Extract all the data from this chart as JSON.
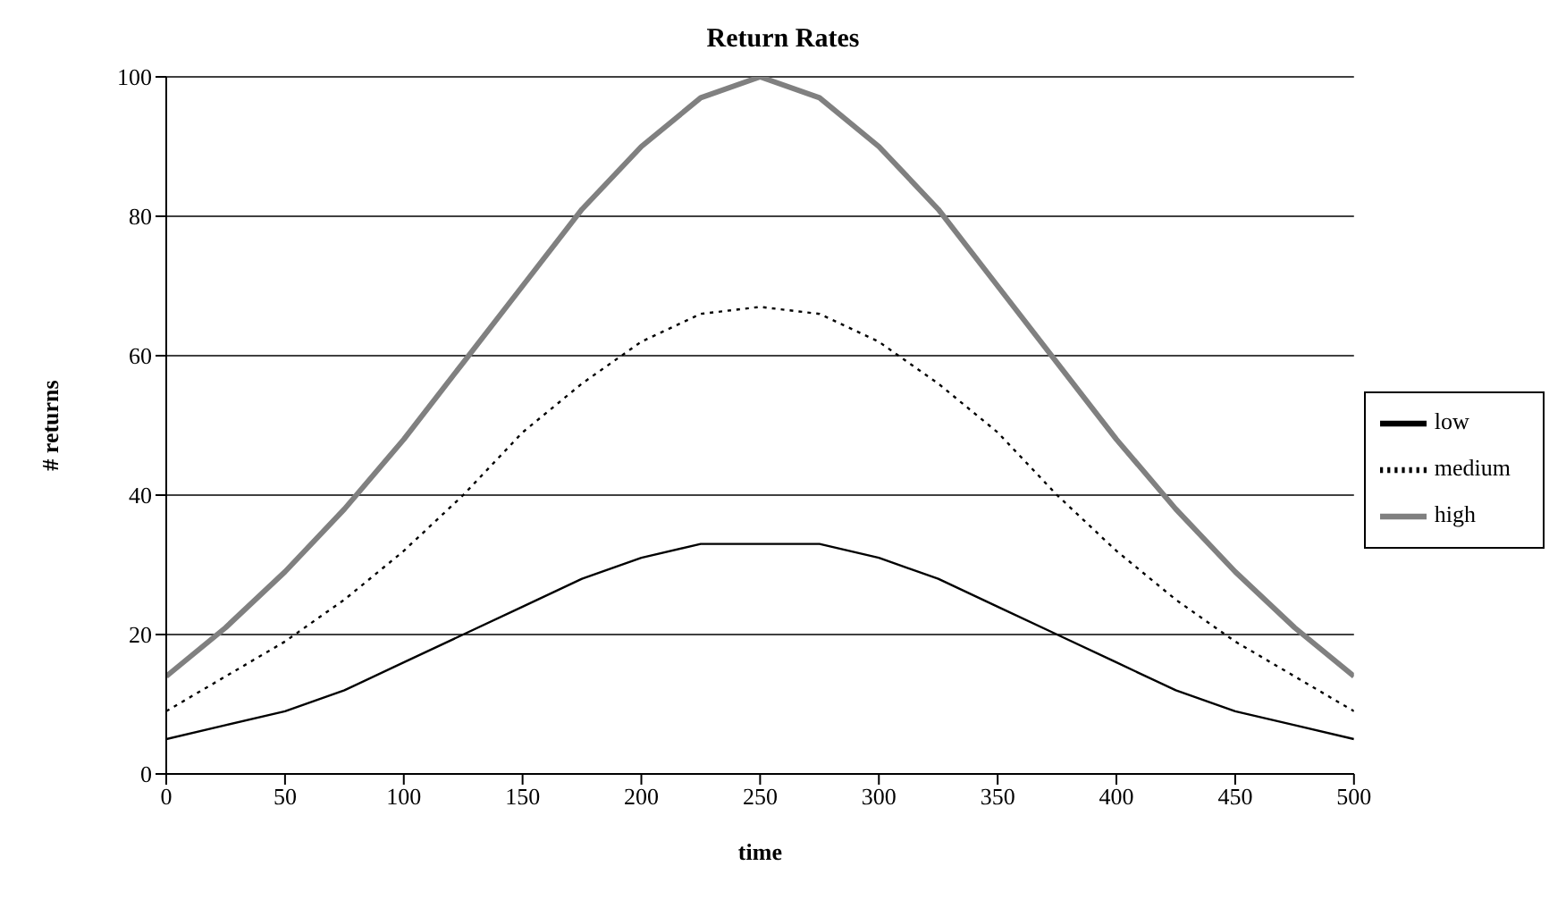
{
  "chart_data": {
    "type": "line",
    "title": "Return Rates",
    "xlabel": "time",
    "ylabel": "# returns",
    "x": [
      0,
      25,
      50,
      75,
      100,
      125,
      150,
      175,
      200,
      225,
      250,
      275,
      300,
      325,
      350,
      375,
      400,
      425,
      450,
      475,
      500
    ],
    "series": [
      {
        "name": "low",
        "color": "#000000",
        "line_style": "solid",
        "values": [
          5,
          7,
          9,
          12,
          16,
          20,
          24,
          28,
          31,
          33,
          33,
          33,
          31,
          28,
          24,
          20,
          16,
          12,
          9,
          7,
          5
        ]
      },
      {
        "name": "medium",
        "color": "#000000",
        "line_style": "dotted",
        "values": [
          9,
          14,
          19,
          25,
          32,
          40,
          49,
          56,
          62,
          66,
          67,
          66,
          62,
          56,
          49,
          40,
          32,
          25,
          19,
          14,
          9
        ]
      },
      {
        "name": "high",
        "color": "#808080",
        "line_style": "solid",
        "values": [
          14,
          21,
          29,
          38,
          48,
          59,
          70,
          81,
          90,
          97,
          100,
          97,
          90,
          81,
          70,
          59,
          48,
          38,
          29,
          21,
          14
        ]
      }
    ],
    "xlim": [
      0,
      500
    ],
    "xticks": [
      0,
      50,
      100,
      150,
      200,
      250,
      300,
      350,
      400,
      450,
      500
    ],
    "ylim": [
      0,
      100
    ],
    "yticks": [
      0,
      20,
      40,
      60,
      80,
      100
    ],
    "grid": "y",
    "legend": "right",
    "marker": "none"
  }
}
